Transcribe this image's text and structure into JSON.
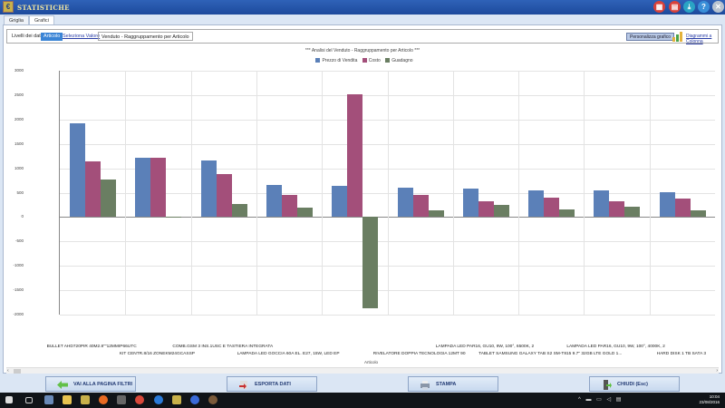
{
  "window": {
    "title": "STATISTICHE",
    "controls": [
      {
        "name": "calendar-icon",
        "color": "#d8413a",
        "glyph": "▦"
      },
      {
        "name": "calculator-icon",
        "color": "#d8413a",
        "glyph": "▤"
      },
      {
        "name": "download-icon",
        "color": "#2aa3c4",
        "glyph": "⤓"
      },
      {
        "name": "help-icon",
        "color": "#3a8fd8",
        "glyph": "?"
      },
      {
        "name": "close-icon",
        "color": "#b8c3d0",
        "glyph": "✕"
      }
    ]
  },
  "tabs": [
    {
      "label": "Griglia",
      "active": false
    },
    {
      "label": "Grafici",
      "active": true
    }
  ],
  "toolbar": {
    "levels_label": "Livelli dei dati:",
    "selected_level": "Articolo",
    "select_value_link": "Seleziona Valore",
    "breadcrumb": "Venduto - Raggruppamento per Articolo",
    "customize_button": "Personalizza grafico",
    "chart_type_link": "Diagrammi a Colonna"
  },
  "chart_data": {
    "type": "bar",
    "title": "*** Analisi del Venduto - Raggruppamento per Articolo ***",
    "xlabel": "Articolo",
    "ylabel": "",
    "ylim": [
      -2000,
      3000
    ],
    "yticks": [
      3000,
      2500,
      2000,
      1500,
      1000,
      500,
      0,
      -500,
      -1000,
      -1500,
      -2000
    ],
    "grid": true,
    "legend_position": "top",
    "categories": [
      "BULLET AHD720PIR 40M2.8\"\"12MMIP66UTC",
      "KIT CENTR.8/16 ZONEKM24GCASSP",
      "COMB.GSM 3 INS.1USC E TASTIERA INTEGRATA",
      "LAMPADA LED GOCCIA 60A EL. E27, 15W, LED EP",
      "",
      "RIVELATORE DOPPIA TECNOLOGIA 12MT 90",
      "LAMPADA LED PAR16, GU10, 9W, 100°, 6500K, 2",
      "TABLET SAMSUNG GALAXY TAB S2 SM-T815 9.7\" 32GB LTE GOLD 1...",
      "LAMPADA LED PAR16, GU10, 9W, 100°, 4000K, 2",
      "HARD DISK 1 TB SATA 3"
    ],
    "series": [
      {
        "name": "Prezzo di Vendita",
        "color": "#5b80b8",
        "values": [
          1928,
          1214,
          1163,
          658,
          640,
          607,
          578,
          545,
          540,
          518
        ]
      },
      {
        "name": "Costo",
        "color": "#a34f7a",
        "values": [
          1141,
          1220,
          885,
          455,
          2510,
          455,
          320,
          400,
          315,
          376
        ]
      },
      {
        "name": "Guadagno",
        "color": "#6a7e62",
        "values": [
          776,
          -10,
          270,
          190,
          -1870,
          143,
          253,
          147,
          219,
          135
        ]
      }
    ]
  },
  "bottom_buttons": [
    {
      "label": "VAI ALLA PAGINA FILTRI",
      "icon": "arrow-left-icon"
    },
    {
      "label": "ESPORTA DATI",
      "icon": "export-icon"
    },
    {
      "label": "STAMPA",
      "icon": "printer-icon"
    },
    {
      "label": "CHIUDI  (Esc)",
      "icon": "exit-door-icon"
    }
  ],
  "taskbar": {
    "time": "10:04",
    "date": "23/08/2016"
  }
}
